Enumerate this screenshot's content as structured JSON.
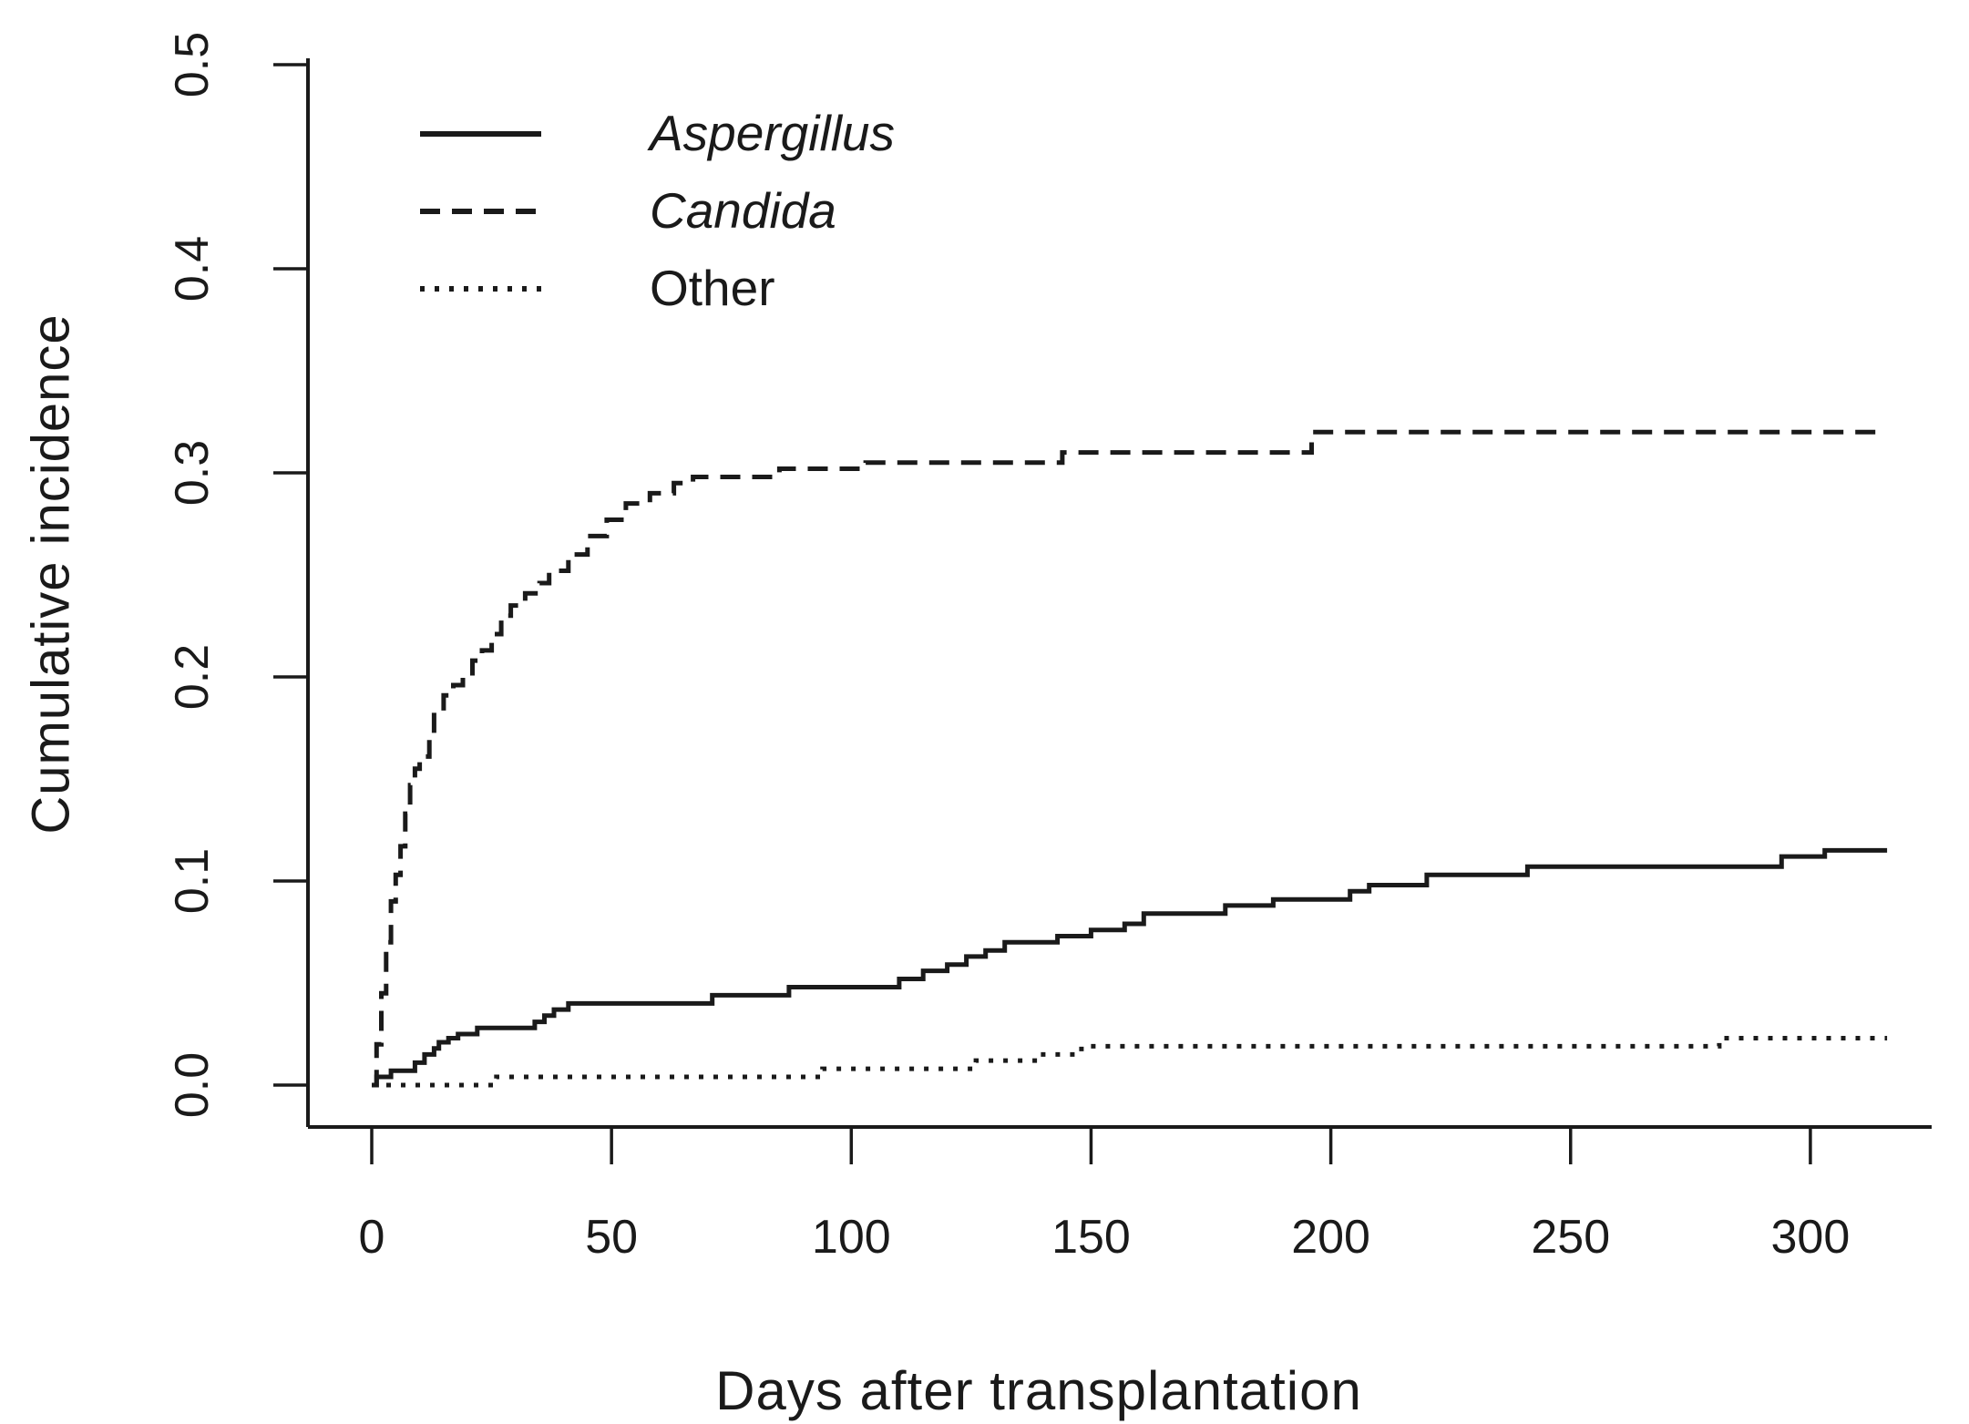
{
  "figure": {
    "background": "#ffffff",
    "ink_color": "#1a1a1a"
  },
  "chart_data": {
    "type": "line",
    "subtype": "step-function-cumulative-incidence",
    "title": "",
    "xlabel": "Days after transplantation",
    "ylabel": "Cumulative incidence",
    "xlim": [
      0,
      316
    ],
    "ylim": [
      0,
      0.5
    ],
    "x_ticks": [
      0,
      50,
      100,
      150,
      200,
      250,
      300
    ],
    "y_ticks": [
      "0.0",
      "0.1",
      "0.2",
      "0.3",
      "0.4",
      "0.5"
    ],
    "grid": false,
    "legend_position": "top-left-inside",
    "series": [
      {
        "name": "Aspergillus",
        "italic": true,
        "line_style": "solid",
        "points": [
          [
            0,
            0
          ],
          [
            1,
            0.004
          ],
          [
            4,
            0.007
          ],
          [
            9,
            0.011
          ],
          [
            11,
            0.015
          ],
          [
            13,
            0.018
          ],
          [
            14,
            0.021
          ],
          [
            16,
            0.023
          ],
          [
            18,
            0.025
          ],
          [
            22,
            0.028
          ],
          [
            34,
            0.031
          ],
          [
            36,
            0.034
          ],
          [
            38,
            0.037
          ],
          [
            41,
            0.04
          ],
          [
            71,
            0.044
          ],
          [
            87,
            0.048
          ],
          [
            110,
            0.052
          ],
          [
            115,
            0.056
          ],
          [
            120,
            0.059
          ],
          [
            124,
            0.063
          ],
          [
            128,
            0.066
          ],
          [
            132,
            0.07
          ],
          [
            143,
            0.073
          ],
          [
            150,
            0.076
          ],
          [
            157,
            0.079
          ],
          [
            161,
            0.084
          ],
          [
            178,
            0.088
          ],
          [
            188,
            0.091
          ],
          [
            204,
            0.095
          ],
          [
            208,
            0.098
          ],
          [
            220,
            0.103
          ],
          [
            241,
            0.107
          ],
          [
            294,
            0.112
          ],
          [
            303,
            0.115
          ],
          [
            316,
            0.115
          ]
        ]
      },
      {
        "name": "Candida",
        "italic": true,
        "line_style": "dashed",
        "points": [
          [
            0,
            0
          ],
          [
            1,
            0.02
          ],
          [
            2,
            0.045
          ],
          [
            3,
            0.07
          ],
          [
            4,
            0.09
          ],
          [
            5,
            0.103
          ],
          [
            6,
            0.117
          ],
          [
            7,
            0.133
          ],
          [
            8,
            0.147
          ],
          [
            9,
            0.155
          ],
          [
            10,
            0.161
          ],
          [
            12,
            0.172
          ],
          [
            13,
            0.183
          ],
          [
            15,
            0.191
          ],
          [
            17,
            0.196
          ],
          [
            19,
            0.2
          ],
          [
            21,
            0.208
          ],
          [
            23,
            0.213
          ],
          [
            25,
            0.221
          ],
          [
            27,
            0.23
          ],
          [
            29,
            0.235
          ],
          [
            32,
            0.241
          ],
          [
            35,
            0.246
          ],
          [
            37,
            0.252
          ],
          [
            41,
            0.26
          ],
          [
            45,
            0.269
          ],
          [
            49,
            0.277
          ],
          [
            53,
            0.285
          ],
          [
            58,
            0.29
          ],
          [
            63,
            0.295
          ],
          [
            67,
            0.298
          ],
          [
            85,
            0.302
          ],
          [
            103,
            0.305
          ],
          [
            144,
            0.31
          ],
          [
            196,
            0.32
          ],
          [
            316,
            0.32
          ]
        ]
      },
      {
        "name": "Other",
        "italic": false,
        "line_style": "dotted",
        "points": [
          [
            0,
            0
          ],
          [
            26,
            0.004
          ],
          [
            94,
            0.008
          ],
          [
            126,
            0.012
          ],
          [
            139,
            0.015
          ],
          [
            148,
            0.019
          ],
          [
            281,
            0.023
          ],
          [
            316,
            0.023
          ]
        ]
      }
    ]
  }
}
